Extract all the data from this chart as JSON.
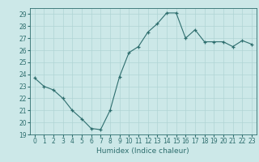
{
  "x": [
    0,
    1,
    2,
    3,
    4,
    5,
    6,
    7,
    8,
    9,
    10,
    11,
    12,
    13,
    14,
    15,
    16,
    17,
    18,
    19,
    20,
    21,
    22,
    23
  ],
  "y": [
    23.7,
    23.0,
    22.7,
    22.0,
    21.0,
    20.3,
    19.5,
    19.4,
    21.0,
    23.8,
    25.8,
    26.3,
    27.5,
    28.2,
    29.1,
    29.1,
    27.0,
    27.7,
    26.7,
    26.7,
    26.7,
    26.3,
    26.8,
    26.5
  ],
  "line_color": "#2e6e6e",
  "bg_color": "#cce8e8",
  "grid_color": "#b0d4d4",
  "xlabel": "Humidex (Indice chaleur)",
  "xlim": [
    -0.5,
    23.5
  ],
  "ylim": [
    19,
    29.5
  ],
  "yticks": [
    19,
    20,
    21,
    22,
    23,
    24,
    25,
    26,
    27,
    28,
    29
  ],
  "xticks": [
    0,
    1,
    2,
    3,
    4,
    5,
    6,
    7,
    8,
    9,
    10,
    11,
    12,
    13,
    14,
    15,
    16,
    17,
    18,
    19,
    20,
    21,
    22,
    23
  ],
  "font_color": "#2e6e6e",
  "tick_fontsize": 5.5,
  "label_fontsize": 6.5,
  "marker": "+"
}
